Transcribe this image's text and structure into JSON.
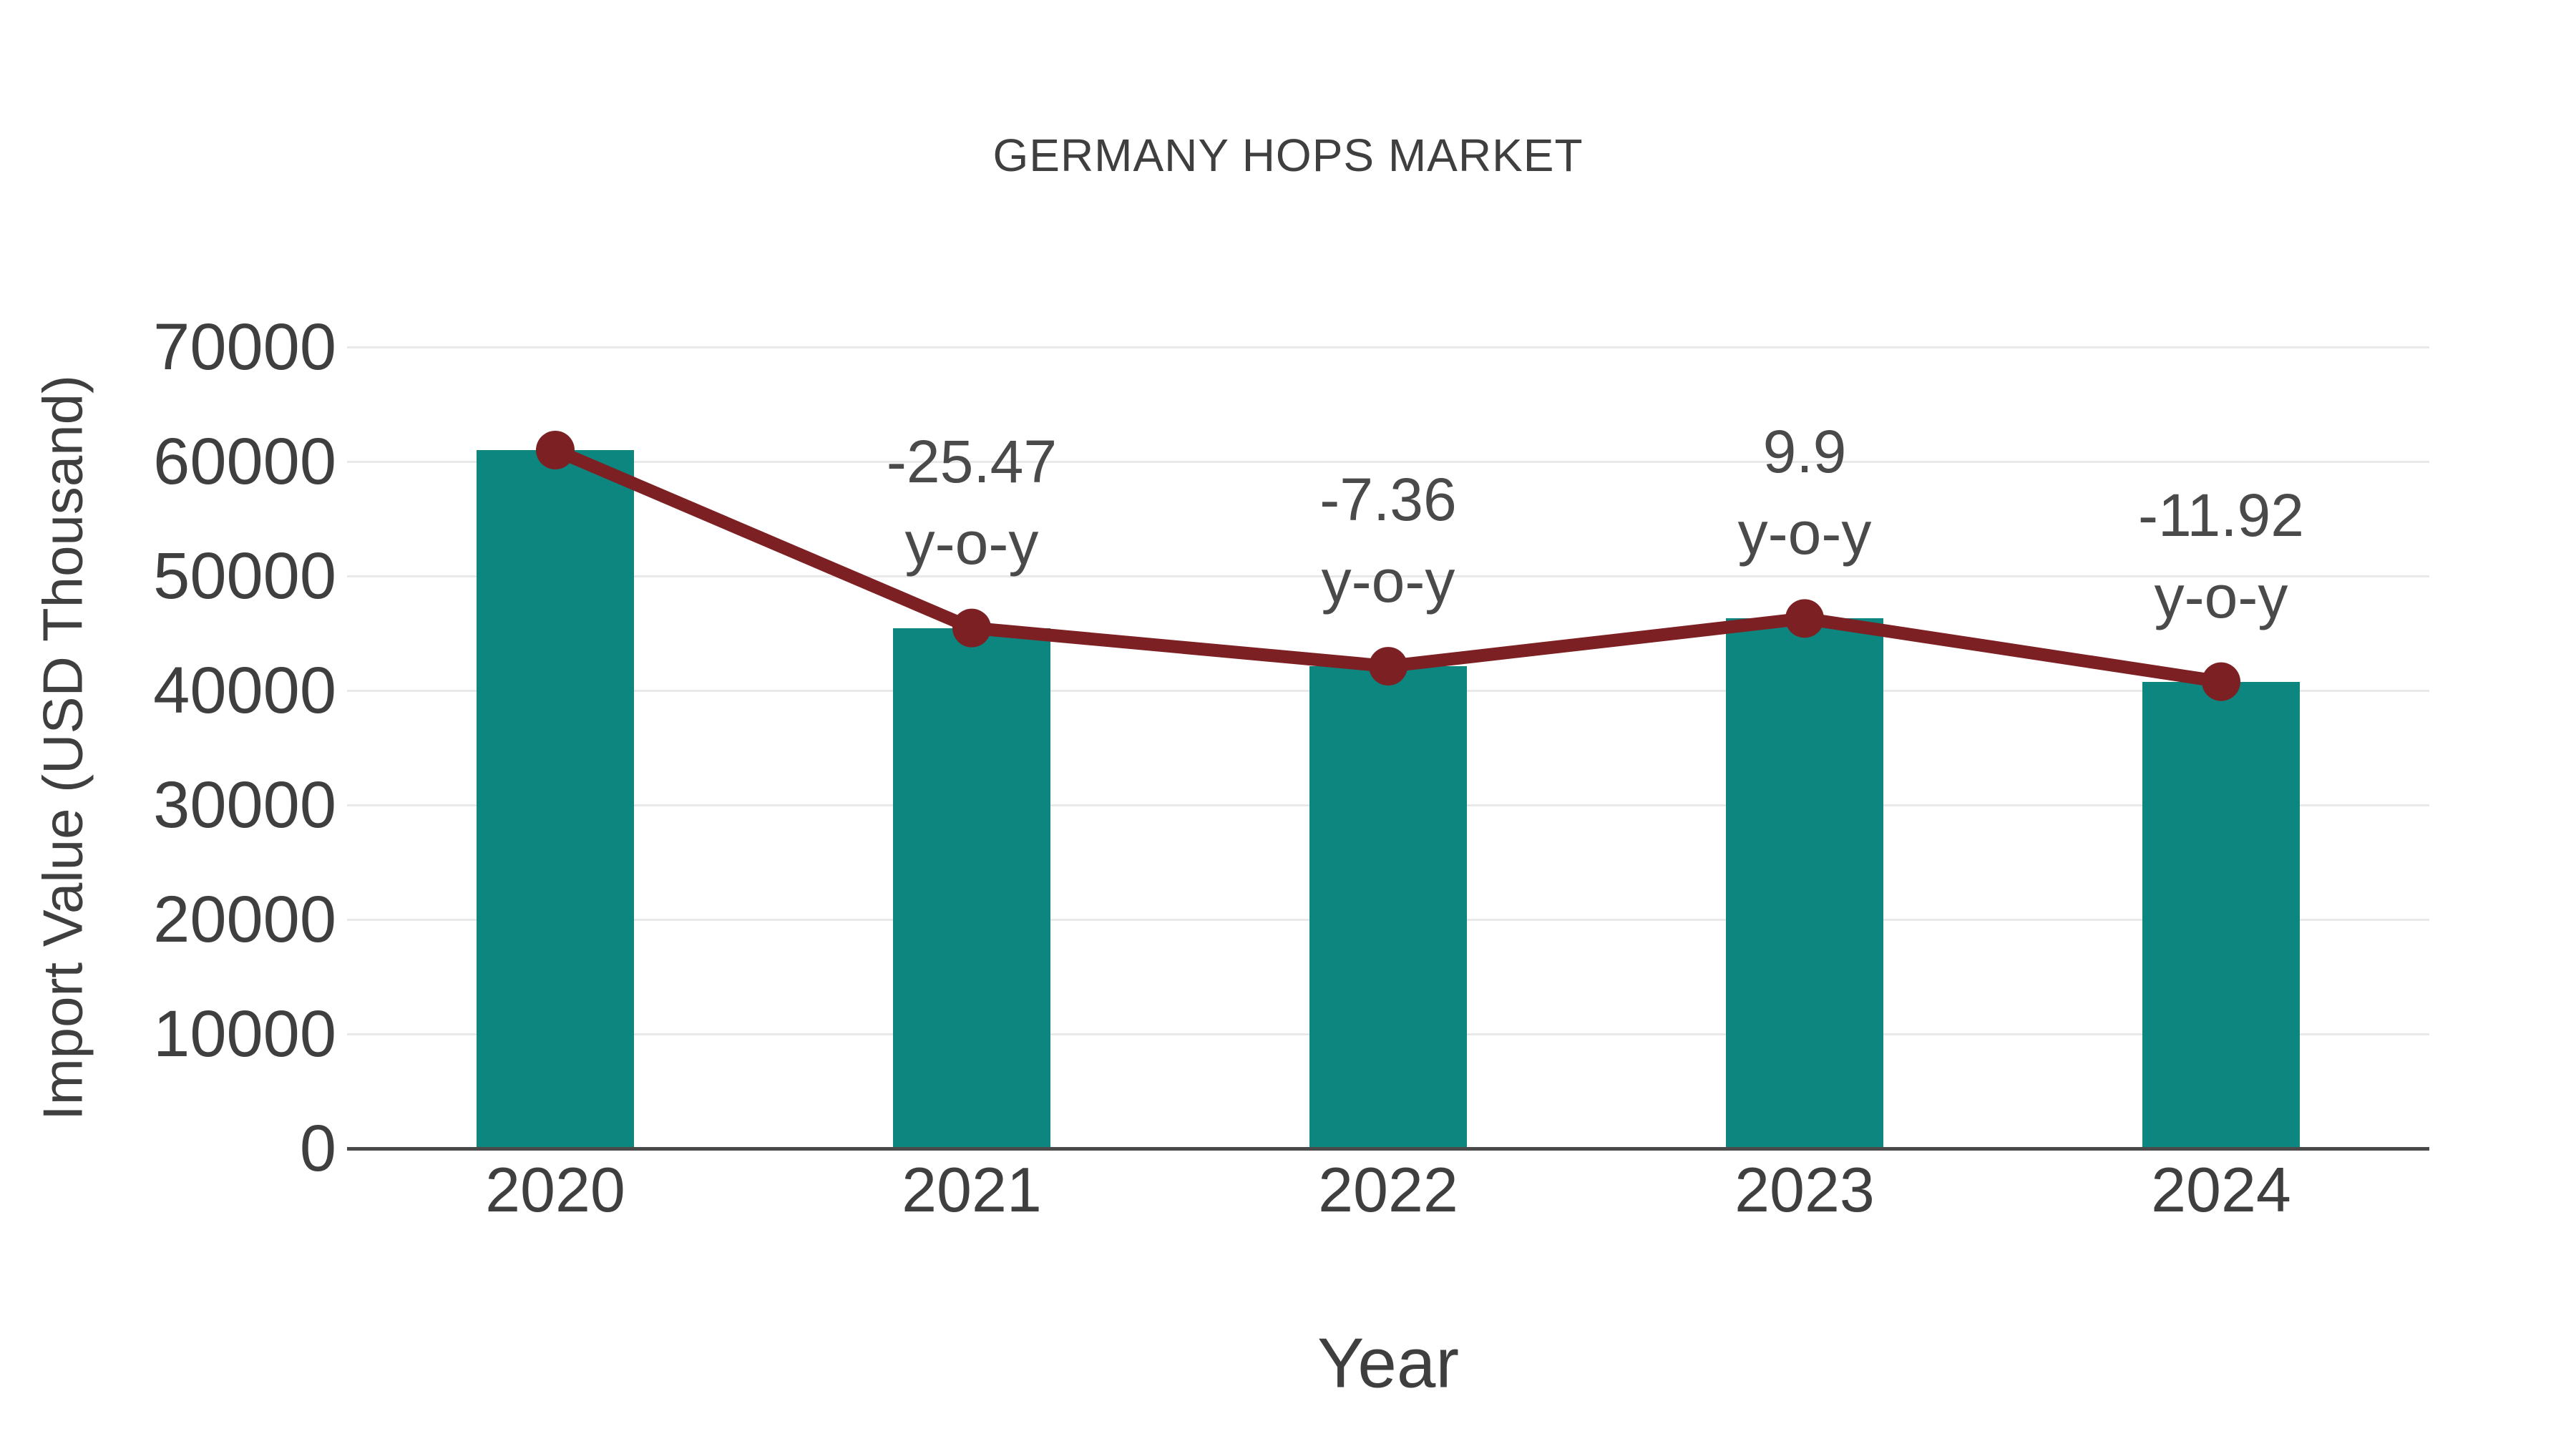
{
  "chart_data": {
    "type": "bar",
    "subtype": "bar-with-line-overlay",
    "title": "GERMANY HOPS MARKET",
    "xlabel": "Year",
    "ylabel": "Import Value (USD Thousand)",
    "categories": [
      "2020",
      "2021",
      "2022",
      "2023",
      "2024"
    ],
    "values": [
      61000,
      45460,
      42120,
      46290,
      40770
    ],
    "series": [
      {
        "name": "Import Value bars",
        "type": "bar"
      },
      {
        "name": "Import Value trend line with markers",
        "type": "line"
      }
    ],
    "annotations": [
      {
        "category": "2021",
        "value": "-25.47",
        "suffix": "y-o-y"
      },
      {
        "category": "2022",
        "value": "-7.36",
        "suffix": "y-o-y"
      },
      {
        "category": "2023",
        "value": "9.9",
        "suffix": "y-o-y"
      },
      {
        "category": "2024",
        "value": "-11.92",
        "suffix": "y-o-y"
      }
    ],
    "ylim": [
      0,
      70000
    ],
    "yticks": [
      0,
      10000,
      20000,
      30000,
      40000,
      50000,
      60000,
      70000
    ],
    "grid": "horizontal",
    "legend": "none",
    "colors": {
      "bar": "#0d8680",
      "line": "#7d2024",
      "text": "#3f3f3f",
      "grid": "#e9e9e9",
      "axis": "#4a4a4a",
      "background": "#ffffff"
    }
  }
}
